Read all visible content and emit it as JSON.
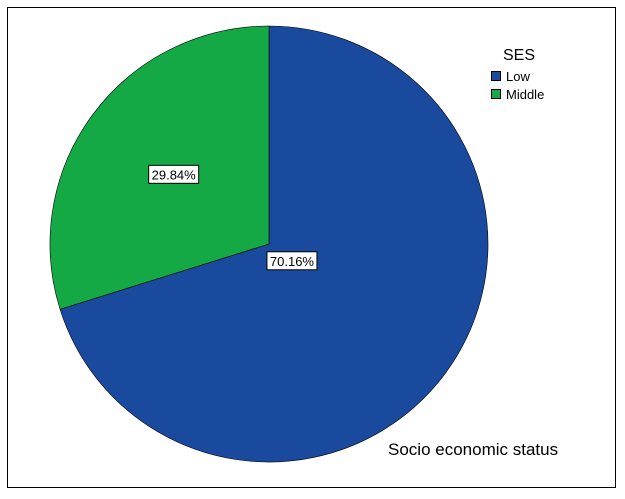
{
  "chart_data": {
    "type": "pie",
    "legend_title": "SES",
    "legend_position": "top-right",
    "title": "Socio economic status",
    "slices": [
      {
        "label": "Low",
        "value": 70.16,
        "value_label": "70.16%",
        "color": "#1a4a9e"
      },
      {
        "label": "Middle",
        "value": 29.84,
        "value_label": "29.84%",
        "color": "#14a945"
      }
    ]
  }
}
